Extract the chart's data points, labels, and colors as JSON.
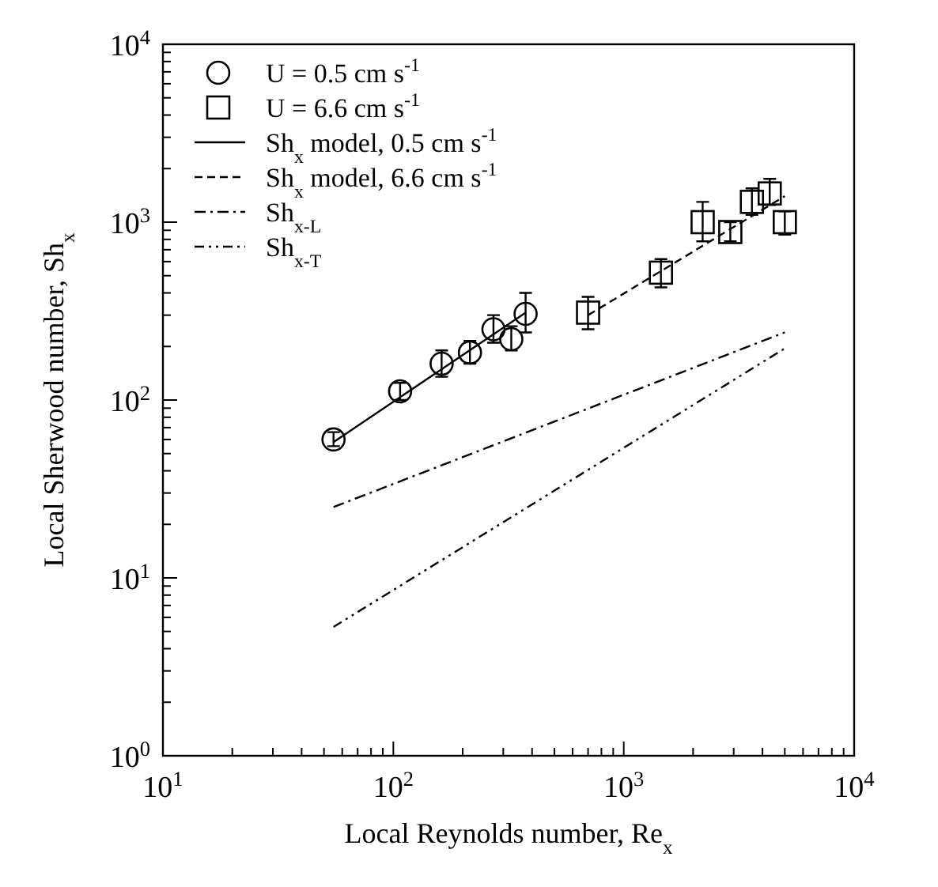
{
  "chart_data": {
    "type": "scatter",
    "xlabel": "Local Reynolds number, Re$_{x}$",
    "ylabel": "Local Sherwood number, Sh$_{x}$",
    "log": "xy",
    "xlim": [
      10,
      10000
    ],
    "ylim": [
      1,
      10000
    ],
    "xticks": [
      {
        "value": 10,
        "label": "10$^{1}$"
      },
      {
        "value": 20,
        "label": null
      },
      {
        "value": 30,
        "label": null
      },
      {
        "value": 40,
        "label": null
      },
      {
        "value": 50,
        "label": null
      },
      {
        "value": 60,
        "label": null
      },
      {
        "value": 70,
        "label": null
      },
      {
        "value": 80,
        "label": null
      },
      {
        "value": 90,
        "label": null
      },
      {
        "value": 100,
        "label": "10$^{2}$"
      },
      {
        "value": 200,
        "label": null
      },
      {
        "value": 300,
        "label": null
      },
      {
        "value": 400,
        "label": null
      },
      {
        "value": 500,
        "label": null
      },
      {
        "value": 600,
        "label": null
      },
      {
        "value": 700,
        "label": null
      },
      {
        "value": 800,
        "label": null
      },
      {
        "value": 900,
        "label": null
      },
      {
        "value": 1000,
        "label": "10$^{3}$"
      },
      {
        "value": 2000,
        "label": null
      },
      {
        "value": 3000,
        "label": null
      },
      {
        "value": 4000,
        "label": null
      },
      {
        "value": 5000,
        "label": null
      },
      {
        "value": 6000,
        "label": null
      },
      {
        "value": 7000,
        "label": null
      },
      {
        "value": 8000,
        "label": null
      },
      {
        "value": 9000,
        "label": null
      },
      {
        "value": 10000,
        "label": "10$^{4}$"
      }
    ],
    "yticks": [
      {
        "value": 1,
        "label": "10$^{0}$"
      },
      {
        "value": 2,
        "label": null
      },
      {
        "value": 3,
        "label": null
      },
      {
        "value": 4,
        "label": null
      },
      {
        "value": 5,
        "label": null
      },
      {
        "value": 6,
        "label": null
      },
      {
        "value": 7,
        "label": null
      },
      {
        "value": 8,
        "label": null
      },
      {
        "value": 9,
        "label": null
      },
      {
        "value": 10,
        "label": "10$^{1}$"
      },
      {
        "value": 20,
        "label": null
      },
      {
        "value": 30,
        "label": null
      },
      {
        "value": 40,
        "label": null
      },
      {
        "value": 50,
        "label": null
      },
      {
        "value": 60,
        "label": null
      },
      {
        "value": 70,
        "label": null
      },
      {
        "value": 80,
        "label": null
      },
      {
        "value": 90,
        "label": null
      },
      {
        "value": 100,
        "label": "10$^{2}$"
      },
      {
        "value": 200,
        "label": null
      },
      {
        "value": 300,
        "label": null
      },
      {
        "value": 400,
        "label": null
      },
      {
        "value": 500,
        "label": null
      },
      {
        "value": 600,
        "label": null
      },
      {
        "value": 700,
        "label": null
      },
      {
        "value": 800,
        "label": null
      },
      {
        "value": 900,
        "label": null
      },
      {
        "value": 1000,
        "label": "10$^{3}$"
      },
      {
        "value": 2000,
        "label": null
      },
      {
        "value": 3000,
        "label": null
      },
      {
        "value": 4000,
        "label": null
      },
      {
        "value": 5000,
        "label": null
      },
      {
        "value": 6000,
        "label": null
      },
      {
        "value": 7000,
        "label": null
      },
      {
        "value": 8000,
        "label": null
      },
      {
        "value": 9000,
        "label": null
      },
      {
        "value": 10000,
        "label": "10$^{4}$"
      }
    ],
    "grid": false,
    "legend": "top left",
    "series": [
      {
        "name": "U = 0.5 cm s$^{-1}$",
        "marker": "circle",
        "color": "#000000",
        "x": [
          55,
          107,
          162,
          215,
          272,
          325,
          375
        ],
        "values": [
          60,
          112,
          160,
          185,
          250,
          220,
          305
        ],
        "errors": [
          [
            55,
            66
          ],
          [
            100,
            125
          ],
          [
            135,
            190
          ],
          [
            160,
            215
          ],
          [
            210,
            300
          ],
          [
            190,
            260
          ],
          [
            240,
            400
          ]
        ]
      },
      {
        "name": "U = 6.6 cm s$^{-1}$",
        "marker": "square",
        "color": "#000000",
        "x": [
          700,
          1450,
          2200,
          2900,
          3600,
          4300,
          5000
        ],
        "values": [
          310,
          520,
          1000,
          880,
          1300,
          1450,
          1000
        ],
        "errors": [
          [
            250,
            380
          ],
          [
            430,
            620
          ],
          [
            780,
            1300
          ],
          [
            780,
            1000
          ],
          [
            1100,
            1550
          ],
          [
            1250,
            1750
          ],
          [
            850,
            1150
          ]
        ]
      },
      {
        "name": "Sh$_{x}$ model, 0.5 cm s$^{-1}$",
        "type": "line",
        "marker": "none",
        "line_style": "solid",
        "color": "#000000",
        "x": [
          55,
          375
        ],
        "values": [
          58,
          310
        ]
      },
      {
        "name": "Sh$_{x}$ model, 6.6 cm s$^{-1}$",
        "type": "line",
        "marker": "none",
        "line_style": "dashed",
        "color": "#000000",
        "x": [
          700,
          5000
        ],
        "values": [
          300,
          1400
        ]
      },
      {
        "name": "Sh$_{x-L}$",
        "type": "line",
        "marker": "none",
        "line_style": "dashdot",
        "color": "#000000",
        "x": [
          55,
          5000
        ],
        "values": [
          25,
          240
        ]
      },
      {
        "name": "Sh$_{x-T}$",
        "type": "line",
        "marker": "none",
        "line_style": "dashdotdot",
        "color": "#000000",
        "x": [
          55,
          5000
        ],
        "values": [
          5.3,
          195
        ]
      }
    ]
  }
}
